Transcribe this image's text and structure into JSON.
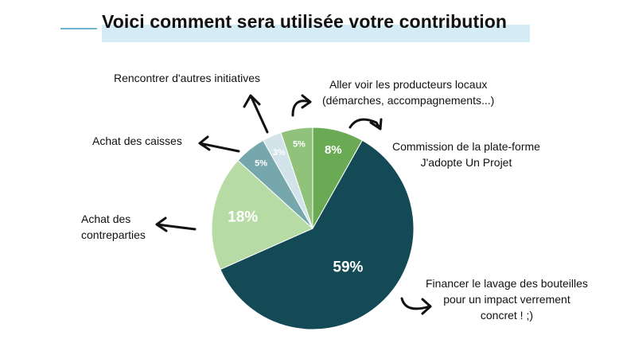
{
  "header": {
    "title": "Voici comment sera utilisée votre contribution"
  },
  "chart_data": {
    "type": "pie",
    "title": "Voici comment sera utilisée votre contribution",
    "slices": [
      {
        "key": "commission",
        "value": 8,
        "label": "8%",
        "color": "#6aaa55",
        "text_lines": [
          "Commission de la plate-forme",
          "J'adopte Un Projet"
        ]
      },
      {
        "key": "lavage",
        "value": 59,
        "label": "59%",
        "color": "#134a55",
        "text_lines": [
          "Financer le lavage des bouteilles",
          "pour un impact verrement",
          "concret ! ;)"
        ]
      },
      {
        "key": "contreparties",
        "value": 18,
        "label": "18%",
        "color": "#b7dba4",
        "text_lines": [
          "Achat des",
          "contreparties"
        ]
      },
      {
        "key": "caisses",
        "value": 5,
        "label": "5%",
        "color": "#76a7ad",
        "text_lines": [
          "Achat des caisses"
        ]
      },
      {
        "key": "initiatives",
        "value": 3,
        "label": "3%",
        "color": "#d2e3e9",
        "text_lines": [
          "Rencontrer d'autres initiatives"
        ]
      },
      {
        "key": "producteurs",
        "value": 5,
        "label": "5%",
        "color": "#90c27b",
        "text_lines": [
          "Aller voir les producteurs locaux",
          "(démarches, accompagnements...)"
        ]
      }
    ]
  }
}
